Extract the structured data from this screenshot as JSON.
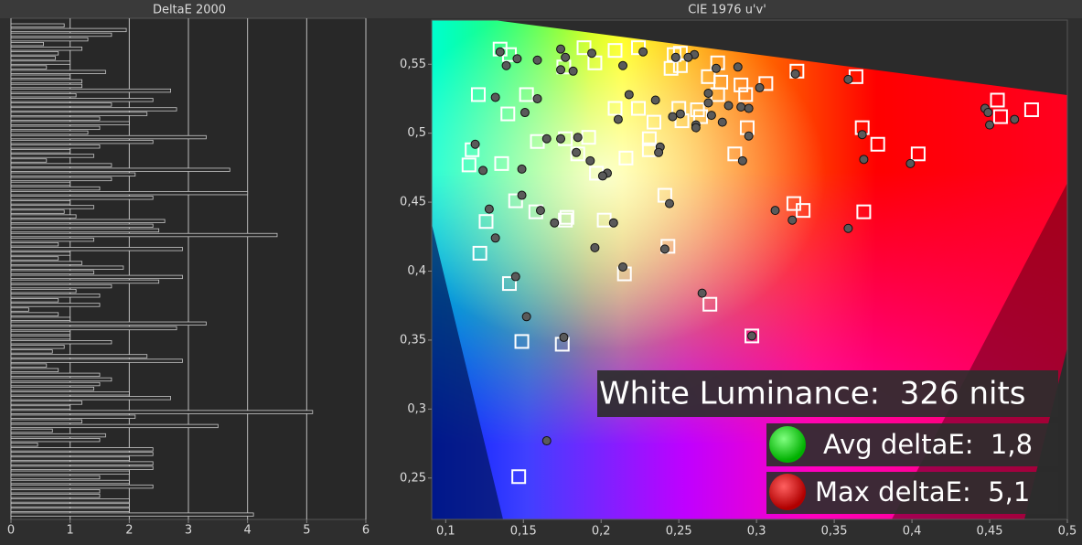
{
  "chart_data": [
    {
      "type": "bar",
      "orientation": "horizontal",
      "title": "DeltaE 2000",
      "values": [
        0.9,
        1.95,
        1.7,
        1.3,
        0.55,
        1.2,
        0.8,
        0.75,
        1.0,
        0.6,
        1.6,
        1.0,
        1.2,
        1.2,
        2.7,
        1.1,
        2.4,
        1.7,
        2.8,
        2.3,
        1.5,
        2.0,
        1.5,
        1.3,
        3.3,
        2.4,
        1.5,
        1.0,
        1.4,
        0.6,
        1.7,
        3.7,
        2.1,
        1.7,
        1.0,
        1.5,
        4.0,
        2.4,
        1.0,
        1.4,
        0.9,
        1.1,
        2.6,
        2.4,
        2.5,
        4.5,
        1.4,
        0.8,
        2.9,
        1.0,
        0.8,
        1.2,
        1.9,
        1.4,
        2.9,
        2.5,
        1.7,
        1.1,
        1.5,
        0.8,
        1.5,
        0.3,
        0.8,
        1.0,
        3.3,
        2.8,
        1.0,
        1.0,
        1.7,
        0.9,
        0.7,
        2.3,
        2.9,
        0.6,
        0.8,
        1.5,
        1.7,
        1.5,
        1.4,
        2.0,
        2.7,
        1.2,
        1.0,
        5.1,
        2.1,
        1.2,
        3.5,
        0.7,
        1.6,
        1.5,
        0.45,
        2.4,
        2.4,
        2.0,
        2.4,
        2.4,
        2.0,
        1.5,
        2.0,
        2.4,
        1.5,
        1.5,
        2.0,
        2.0,
        2.0,
        4.1
      ],
      "color": "#2a2a2a",
      "edge_color": "#c8c8c8",
      "xlim": [
        0,
        6
      ],
      "xticks": [
        0,
        1,
        2,
        3,
        4,
        5,
        6
      ],
      "grid": true
    },
    {
      "type": "scatter",
      "title": "CIE 1976 u'v'",
      "xlim": [
        0.091,
        0.5
      ],
      "ylim": [
        0.22,
        0.582
      ],
      "xticks": [
        {
          "value": 0.1,
          "label": "0,1"
        },
        {
          "value": 0.15,
          "label": "0,15"
        },
        {
          "value": 0.2,
          "label": "0,2"
        },
        {
          "value": 0.25,
          "label": "0,25"
        },
        {
          "value": 0.3,
          "label": "0,3"
        },
        {
          "value": 0.35,
          "label": "0,35"
        },
        {
          "value": 0.4,
          "label": "0,4"
        },
        {
          "value": 0.45,
          "label": "0,45"
        },
        {
          "value": 0.5,
          "label": "0,5"
        }
      ],
      "yticks": [
        {
          "value": 0.25,
          "label": "0,25"
        },
        {
          "value": 0.3,
          "label": "0,3"
        },
        {
          "value": 0.35,
          "label": "0,35"
        },
        {
          "value": 0.4,
          "label": "0,4"
        },
        {
          "value": 0.45,
          "label": "0,45"
        },
        {
          "value": 0.5,
          "label": "0,5"
        },
        {
          "value": 0.55,
          "label": "0,55"
        }
      ],
      "series": [
        {
          "marker": "square",
          "color": "#ffffff",
          "x": [
            0.135,
            0.141,
            0.189,
            0.209,
            0.224,
            0.247,
            0.251,
            0.275,
            0.245,
            0.251,
            0.176,
            0.196,
            0.269,
            0.277,
            0.275,
            0.29,
            0.306,
            0.293,
            0.326,
            0.364,
            0.121,
            0.152,
            0.209,
            0.224,
            0.25,
            0.234,
            0.252,
            0.262,
            0.264,
            0.294,
            0.368,
            0.455,
            0.457,
            0.477,
            0.14,
            0.159,
            0.177,
            0.192,
            0.185,
            0.197,
            0.216,
            0.231,
            0.231,
            0.286,
            0.378,
            0.404,
            0.117,
            0.115,
            0.136,
            0.145,
            0.126,
            0.158,
            0.178,
            0.177,
            0.202,
            0.241,
            0.243,
            0.324,
            0.33,
            0.369,
            0.122,
            0.141,
            0.215,
            0.27,
            0.149,
            0.175,
            0.297,
            0.147
          ],
          "y": [
            0.561,
            0.557,
            0.562,
            0.56,
            0.562,
            0.557,
            0.558,
            0.551,
            0.547,
            0.549,
            0.548,
            0.551,
            0.541,
            0.537,
            0.528,
            0.535,
            0.536,
            0.528,
            0.545,
            0.541,
            0.528,
            0.528,
            0.518,
            0.518,
            0.518,
            0.508,
            0.509,
            0.517,
            0.512,
            0.504,
            0.504,
            0.524,
            0.512,
            0.517,
            0.514,
            0.494,
            0.496,
            0.497,
            0.485,
            0.471,
            0.482,
            0.496,
            0.488,
            0.485,
            0.492,
            0.485,
            0.488,
            0.477,
            0.478,
            0.451,
            0.436,
            0.443,
            0.439,
            0.437,
            0.437,
            0.455,
            0.418,
            0.449,
            0.444,
            0.443,
            0.413,
            0.391,
            0.398,
            0.376,
            0.349,
            0.347,
            0.353,
            0.251
          ]
        },
        {
          "marker": "circle",
          "color": "#5a5a5a",
          "x": [
            0.135,
            0.139,
            0.146,
            0.159,
            0.174,
            0.177,
            0.194,
            0.214,
            0.227,
            0.248,
            0.26,
            0.256,
            0.274,
            0.288,
            0.325,
            0.359,
            0.132,
            0.151,
            0.159,
            0.174,
            0.182,
            0.211,
            0.218,
            0.235,
            0.246,
            0.251,
            0.269,
            0.269,
            0.271,
            0.261,
            0.261,
            0.278,
            0.282,
            0.29,
            0.295,
            0.302,
            0.295,
            0.368,
            0.447,
            0.449,
            0.45,
            0.466,
            0.119,
            0.124,
            0.149,
            0.165,
            0.174,
            0.185,
            0.184,
            0.193,
            0.204,
            0.201,
            0.238,
            0.237,
            0.291,
            0.369,
            0.399,
            0.128,
            0.149,
            0.161,
            0.17,
            0.208,
            0.244,
            0.312,
            0.323,
            0.359,
            0.241,
            0.132,
            0.196,
            0.214,
            0.145,
            0.152,
            0.176,
            0.297,
            0.265,
            0.165
          ],
          "y": [
            0.559,
            0.549,
            0.554,
            0.553,
            0.561,
            0.555,
            0.558,
            0.549,
            0.559,
            0.555,
            0.557,
            0.555,
            0.547,
            0.548,
            0.543,
            0.539,
            0.526,
            0.515,
            0.525,
            0.546,
            0.545,
            0.51,
            0.528,
            0.524,
            0.512,
            0.514,
            0.529,
            0.522,
            0.513,
            0.506,
            0.504,
            0.508,
            0.52,
            0.519,
            0.518,
            0.533,
            0.498,
            0.499,
            0.518,
            0.515,
            0.506,
            0.51,
            0.492,
            0.473,
            0.474,
            0.496,
            0.496,
            0.497,
            0.486,
            0.48,
            0.471,
            0.469,
            0.49,
            0.486,
            0.48,
            0.481,
            0.478,
            0.445,
            0.455,
            0.444,
            0.435,
            0.435,
            0.449,
            0.444,
            0.437,
            0.431,
            0.416,
            0.424,
            0.417,
            0.403,
            0.396,
            0.367,
            0.352,
            0.353,
            0.384,
            0.277
          ]
        }
      ],
      "annotations": [
        "White Luminance:  326 nits",
        "Avg deltaE:  1,8",
        "Max deltaE:  5,1"
      ]
    }
  ]
}
